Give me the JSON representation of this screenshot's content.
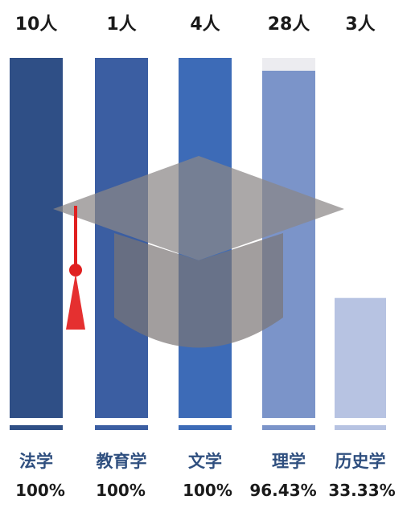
{
  "chart_data": {
    "type": "bar",
    "categories": [
      "法学",
      "教育学",
      "文学",
      "理学",
      "历史学"
    ],
    "counts": [
      "10人",
      "1人",
      "4人",
      "28人",
      "3人"
    ],
    "values": [
      100,
      100,
      100,
      96.43,
      33.33
    ],
    "value_labels": [
      "100%",
      "100%",
      "100%",
      "96.43%",
      "33.33%"
    ],
    "ylim": [
      0,
      100
    ],
    "colors": [
      "#2f4f86",
      "#3b5ea2",
      "#3d6bb7",
      "#7b94c9",
      "#b7c3e2"
    ]
  }
}
